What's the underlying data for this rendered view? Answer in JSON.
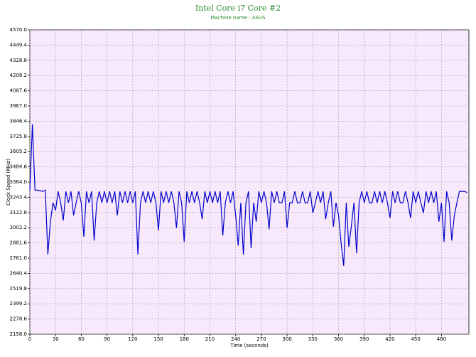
{
  "chart_data": {
    "type": "line",
    "title": "Intel Core i7 Core #2",
    "subtitle": "Machine name : ASUS",
    "xlabel": "Time (seconds)",
    "ylabel": "Clock Speed (MHz)",
    "xlim": [
      0,
      512
    ],
    "ylim": [
      2158,
      4570
    ],
    "grid": true,
    "xticks": [
      0,
      30,
      60,
      90,
      120,
      150,
      180,
      210,
      240,
      270,
      300,
      330,
      360,
      390,
      420,
      450,
      480
    ],
    "yticks": [
      {
        "value": 2158,
        "label": "2158.0"
      },
      2278.6,
      2399.2,
      2519.8,
      2640.4,
      {
        "value": 2761,
        "label": "2761.0"
      },
      2881.6,
      3002.2,
      3122.8,
      3243.4,
      {
        "value": 3364,
        "label": "3364.0"
      },
      3484.6,
      3605.2,
      3725.8,
      3846.4,
      {
        "value": 3967,
        "label": "3967.0"
      },
      4087.6,
      4208.2,
      4328.8,
      4449.4,
      {
        "value": 4570,
        "label": "4570.0"
      }
    ],
    "x": [
      0,
      3,
      6,
      9,
      12,
      15,
      18,
      21,
      24,
      27,
      30,
      33,
      36,
      39,
      42,
      45,
      48,
      51,
      54,
      57,
      60,
      63,
      66,
      69,
      72,
      75,
      78,
      81,
      84,
      87,
      90,
      93,
      96,
      99,
      102,
      105,
      108,
      111,
      114,
      117,
      120,
      123,
      126,
      129,
      132,
      135,
      138,
      141,
      144,
      147,
      150,
      153,
      156,
      159,
      162,
      165,
      168,
      171,
      174,
      177,
      180,
      183,
      186,
      189,
      192,
      195,
      198,
      201,
      204,
      207,
      210,
      213,
      216,
      219,
      222,
      225,
      228,
      231,
      234,
      237,
      240,
      243,
      246,
      249,
      252,
      255,
      258,
      261,
      264,
      267,
      270,
      273,
      276,
      279,
      282,
      285,
      288,
      291,
      294,
      297,
      300,
      303,
      306,
      309,
      312,
      315,
      318,
      321,
      324,
      327,
      330,
      333,
      336,
      339,
      342,
      345,
      348,
      351,
      354,
      357,
      360,
      363,
      366,
      369,
      372,
      375,
      378,
      381,
      384,
      387,
      390,
      393,
      396,
      399,
      402,
      405,
      408,
      411,
      414,
      417,
      420,
      423,
      426,
      429,
      432,
      435,
      438,
      441,
      444,
      447,
      450,
      453,
      456,
      459,
      462,
      465,
      468,
      471,
      474,
      477,
      480,
      483,
      486,
      489,
      492,
      495,
      498,
      501,
      504,
      507,
      510
    ],
    "series": [
      {
        "color": "#0000cc",
        "values": [
          3300,
          3820,
          3300,
          3300,
          3295,
          3290,
          3300,
          2790,
          3050,
          3200,
          3140,
          3290,
          3200,
          3060,
          3290,
          3200,
          3290,
          3100,
          3200,
          3290,
          3200,
          2930,
          3290,
          3200,
          3290,
          2900,
          3200,
          3290,
          3200,
          3290,
          3200,
          3290,
          3200,
          3290,
          3100,
          3290,
          3200,
          3290,
          3200,
          3290,
          3200,
          3290,
          2790,
          3200,
          3290,
          3200,
          3290,
          3200,
          3290,
          3200,
          2980,
          3290,
          3200,
          3290,
          3200,
          3290,
          3200,
          3000,
          3290,
          3200,
          2890,
          3290,
          3200,
          3290,
          3200,
          3290,
          3200,
          3070,
          3290,
          3200,
          3290,
          3200,
          3290,
          3200,
          3290,
          2940,
          3200,
          3290,
          3200,
          3290,
          3100,
          2860,
          3200,
          2790,
          3200,
          3290,
          2840,
          3200,
          3050,
          3290,
          3200,
          3290,
          3200,
          2990,
          3290,
          3200,
          3290,
          3200,
          3200,
          3290,
          3000,
          3200,
          3200,
          3290,
          3200,
          3200,
          3290,
          3200,
          3200,
          3290,
          3120,
          3200,
          3290,
          3200,
          3290,
          3070,
          3200,
          3290,
          3010,
          3200,
          3100,
          2880,
          2700,
          3200,
          2850,
          3020,
          3200,
          2800,
          3200,
          3290,
          3200,
          3290,
          3200,
          3200,
          3290,
          3200,
          3290,
          3200,
          3290,
          3200,
          3080,
          3290,
          3200,
          3290,
          3200,
          3200,
          3290,
          3200,
          3080,
          3290,
          3200,
          3290,
          3200,
          3120,
          3290,
          3200,
          3290,
          3200,
          3290,
          3050,
          3200,
          2890,
          3290,
          3200,
          2900,
          3100,
          3200,
          3290,
          3290,
          3290,
          3280
        ]
      }
    ]
  }
}
